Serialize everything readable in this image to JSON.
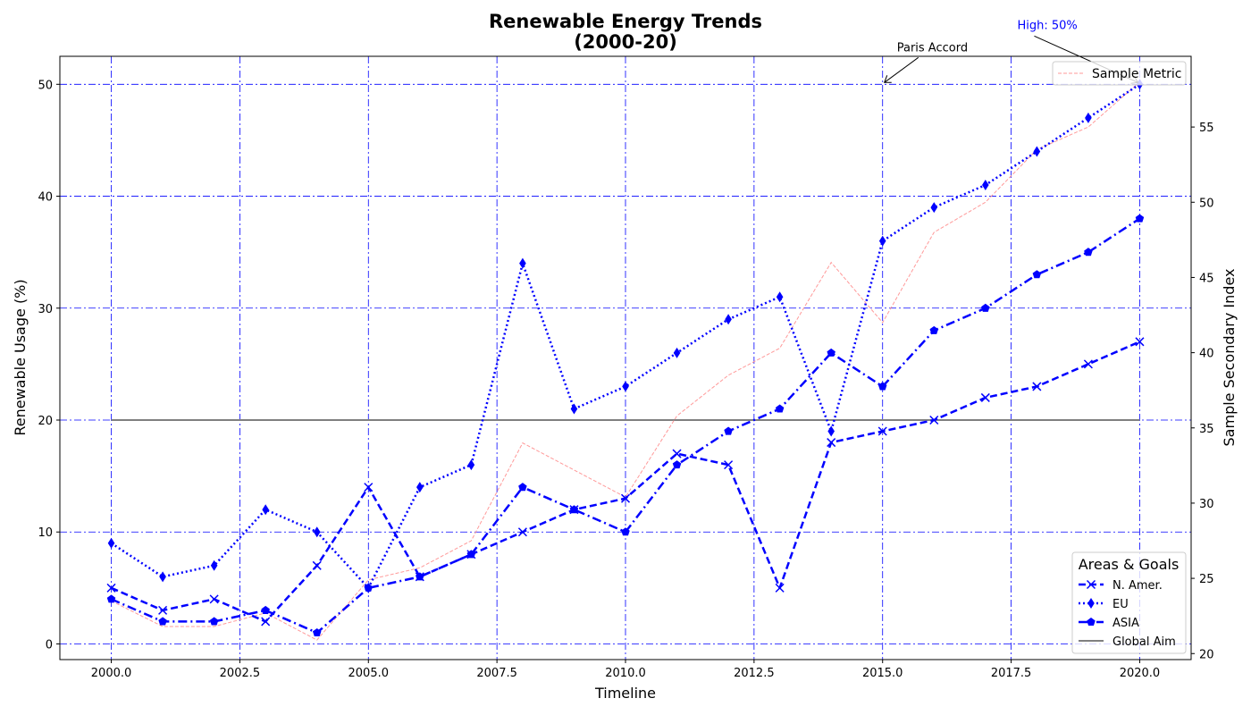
{
  "chart_data": {
    "type": "line",
    "title_line1": "Renewable Energy Trends",
    "title_line2": "(2000-20)",
    "xlabel": "Timeline",
    "ylabel": "Renewable Usage (%)",
    "ylabel_right": "Sample Secondary Index",
    "xlim": [
      1999.0,
      2021.0
    ],
    "ylim": [
      -1.4,
      52.5
    ],
    "ylim_right": [
      19.6,
      59.7
    ],
    "x_ticks": [
      2000.0,
      2002.5,
      2005.0,
      2007.5,
      2010.0,
      2012.5,
      2015.0,
      2017.5,
      2020.0
    ],
    "x_tick_labels": [
      "2000.0",
      "2002.5",
      "2005.0",
      "2007.5",
      "2010.0",
      "2012.5",
      "2015.0",
      "2017.5",
      "2020.0"
    ],
    "y_ticks": [
      0,
      10,
      20,
      30,
      40,
      50
    ],
    "y_tick_labels": [
      "0",
      "10",
      "20",
      "30",
      "40",
      "50"
    ],
    "y_right_ticks": [
      20,
      25,
      30,
      35,
      40,
      45,
      50,
      55
    ],
    "y_right_tick_labels": [
      "20",
      "25",
      "30",
      "35",
      "40",
      "45",
      "50",
      "55"
    ],
    "grid": true,
    "x": [
      2000,
      2001,
      2002,
      2003,
      2004,
      2005,
      2006,
      2007,
      2008,
      2009,
      2010,
      2011,
      2012,
      2013,
      2014,
      2015,
      2016,
      2017,
      2018,
      2019,
      2020
    ],
    "series": [
      {
        "name": "N. Amer.",
        "color": "#0000ff",
        "dash": "dashed",
        "marker": "x",
        "values": [
          5,
          3,
          4,
          2,
          7,
          14,
          6,
          8,
          10,
          12,
          13,
          17,
          16,
          5,
          18,
          19,
          20,
          22,
          23,
          25,
          27
        ]
      },
      {
        "name": "EU",
        "color": "#0000ff",
        "dash": "dotted",
        "marker": "thin-diamond",
        "values": [
          9,
          6,
          7,
          12,
          10,
          5,
          14,
          16,
          34,
          21,
          23,
          26,
          29,
          31,
          19,
          36,
          39,
          41,
          44,
          47,
          50
        ]
      },
      {
        "name": "ASIA",
        "color": "#0000ff",
        "dash": "dashdot",
        "marker": "pentagon",
        "values": [
          4,
          2,
          2,
          3,
          1,
          5,
          6,
          8,
          14,
          12,
          10,
          16,
          19,
          21,
          26,
          23,
          28,
          30,
          33,
          35,
          38
        ]
      }
    ],
    "reference_line": {
      "name": "Global Aim",
      "y": 20,
      "color": "#808080"
    },
    "secondary_series": {
      "name": "Sample Metric",
      "color": "#ff9999",
      "values": [
        23.5,
        21.8,
        21.8,
        22.7,
        20.9,
        24.9,
        25.7,
        27.5,
        34.0,
        32.2,
        30.4,
        35.8,
        38.5,
        40.3,
        46.0,
        42.0,
        48.0,
        50.0,
        53.5,
        55.0,
        58.0
      ]
    },
    "annotations": [
      {
        "text": "Paris Accord",
        "x": 2015,
        "y": 50,
        "color": "#000000"
      },
      {
        "text": "High: 50%",
        "x": 2020,
        "y": 50,
        "color": "#0000ff"
      }
    ],
    "legend_title": "Areas & Goals",
    "legend_position": "lower-right",
    "legend_right_position": "upper-right"
  }
}
